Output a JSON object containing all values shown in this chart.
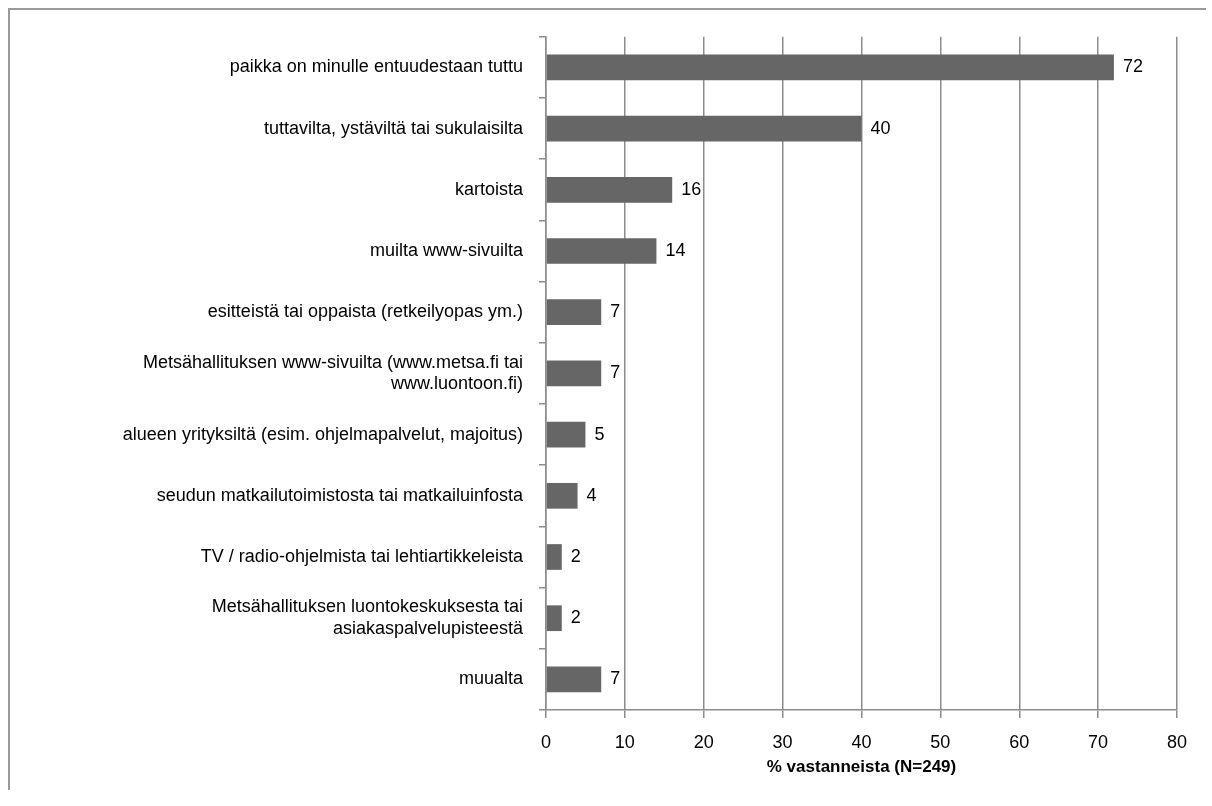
{
  "chart_data": {
    "type": "bar",
    "orientation": "horizontal",
    "categories": [
      "paikka on minulle entuudestaan tuttu",
      "tuttavilta, ystäviltä tai sukulaisilta",
      "kartoista",
      "muilta www-sivuilta",
      "esitteistä tai oppaista (retkeilyopas ym.)",
      "Metsähallituksen www-sivuilta (www.metsa.fi tai www.luontoon.fi)",
      "alueen yrityksiltä (esim. ohjelmapalvelut, majoitus)",
      "seudun matkailutoimistosta tai matkailuinfosta",
      "TV / radio-ohjelmista tai lehtiartikkeleista",
      "Metsähallituksen luontokeskuksesta tai asiakaspalvelupisteestä",
      "muualta"
    ],
    "values": [
      72,
      40,
      16,
      14,
      7,
      7,
      5,
      4,
      2,
      2,
      7
    ],
    "color": "#666666",
    "xlabel": "% vastanneista (N=249)",
    "xlim": [
      0,
      80
    ],
    "xticks": [
      0,
      10,
      20,
      30,
      40,
      50,
      60,
      70,
      80
    ],
    "grid": "x",
    "data_labels": true
  }
}
